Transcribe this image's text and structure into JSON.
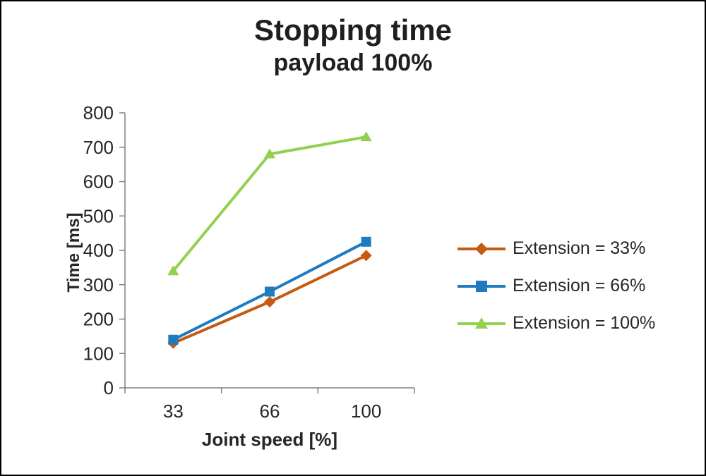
{
  "chart_data": {
    "type": "line",
    "title": "Stopping time",
    "subtitle": "payload 100%",
    "xlabel": "Joint speed [%]",
    "ylabel": "Time [ms]",
    "categories": [
      "33",
      "66",
      "100"
    ],
    "series": [
      {
        "name": "Extension = 33%",
        "values": [
          130,
          250,
          385
        ],
        "color": "#C55A11",
        "marker": "diamond"
      },
      {
        "name": "Extension = 66%",
        "values": [
          140,
          280,
          425
        ],
        "color": "#1F7BC0",
        "marker": "square"
      },
      {
        "name": "Extension = 100%",
        "values": [
          340,
          680,
          730
        ],
        "color": "#92D050",
        "marker": "triangle"
      }
    ],
    "ylim": [
      0,
      800
    ],
    "ytick_step": 100,
    "grid": false,
    "legend_position": "right",
    "axis_color": "#808080",
    "text_color": "#262626"
  }
}
